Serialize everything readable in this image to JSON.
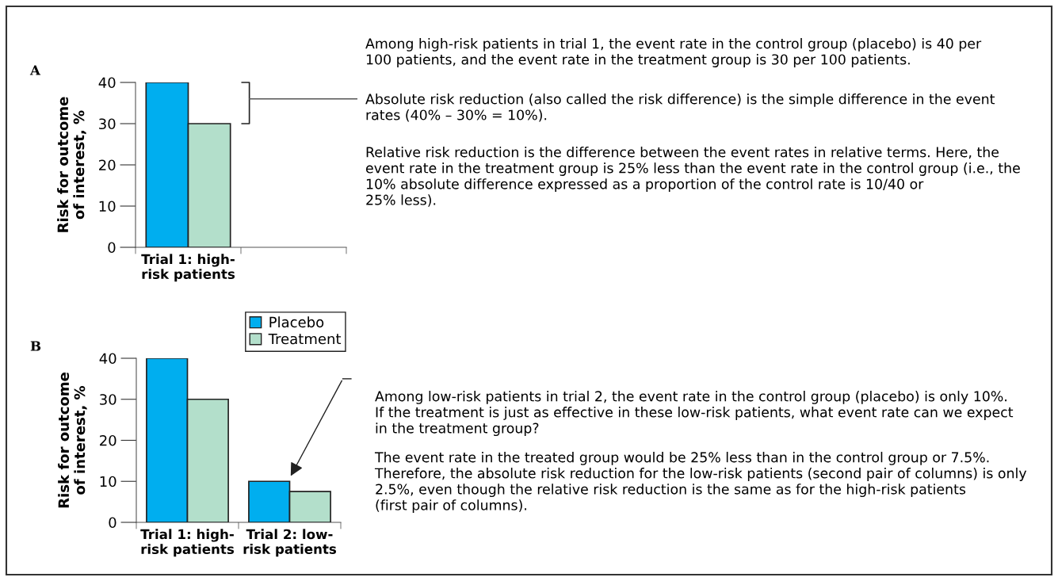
{
  "chart_data": [
    {
      "type": "bar",
      "title": "A",
      "ylabel": "Risk for outcome\nof interest, %",
      "categories": [
        "Trial 1: high-\nrisk patients",
        null
      ],
      "series": [
        {
          "name": "Placebo",
          "color": "#00aeef",
          "values": [
            40,
            null
          ]
        },
        {
          "name": "Treatment",
          "color": "#b3dfcb",
          "values": [
            30,
            null
          ]
        }
      ],
      "ylim": [
        0,
        40
      ],
      "yticks": [
        0,
        10,
        20,
        30,
        40
      ],
      "grid": false,
      "legend": "bottom right",
      "annotations": [
        "Among high-risk patients in trial 1, the event rate in the control group (placebo) is 40 per\n100 patients, and the event rate in the treatment group is 30 per 100 patients.",
        "Absolute risk reduction (also called the risk difference) is the simple difference in the event\nrates (40% – 30% = 10%).",
        "Relative risk reduction is the difference between the event rates in relative terms. Here, the\nevent rate in the treatment group is 25% less than the event rate in the control group (i.e., the\n10% absolute difference expressed as a proportion of the control rate is 10/40 or\n25% less)."
      ]
    },
    {
      "type": "bar",
      "title": "B",
      "ylabel": "Risk for outcome\nof interest, %",
      "categories": [
        "Trial 1: high-\nrisk patients",
        "Trial 2: low-\nrisk patients"
      ],
      "series": [
        {
          "color": "#00aeef",
          "values": [
            40,
            10
          ]
        },
        {
          "color": "#b3dfcb",
          "values": [
            30,
            7.5
          ]
        }
      ],
      "ylim": [
        0,
        40
      ],
      "yticks": [
        0,
        10,
        20,
        30,
        40
      ],
      "grid": false,
      "annotations": [
        "Among low-risk patients in trial 2, the event rate in the control group (placebo) is only 10%.\nIf the treatment is just as effective in these low-risk patients, what event rate can we expect\nin the treatment group?",
        "The event rate in the treated group would be 25% less than in the control group or 7.5%.\nTherefore, the absolute risk reduction for the low-risk patients (second pair of columns) is only\n2.5%, even though the relative risk reduction is the same as for the high-risk patients\n(first pair of columns)."
      ]
    }
  ]
}
